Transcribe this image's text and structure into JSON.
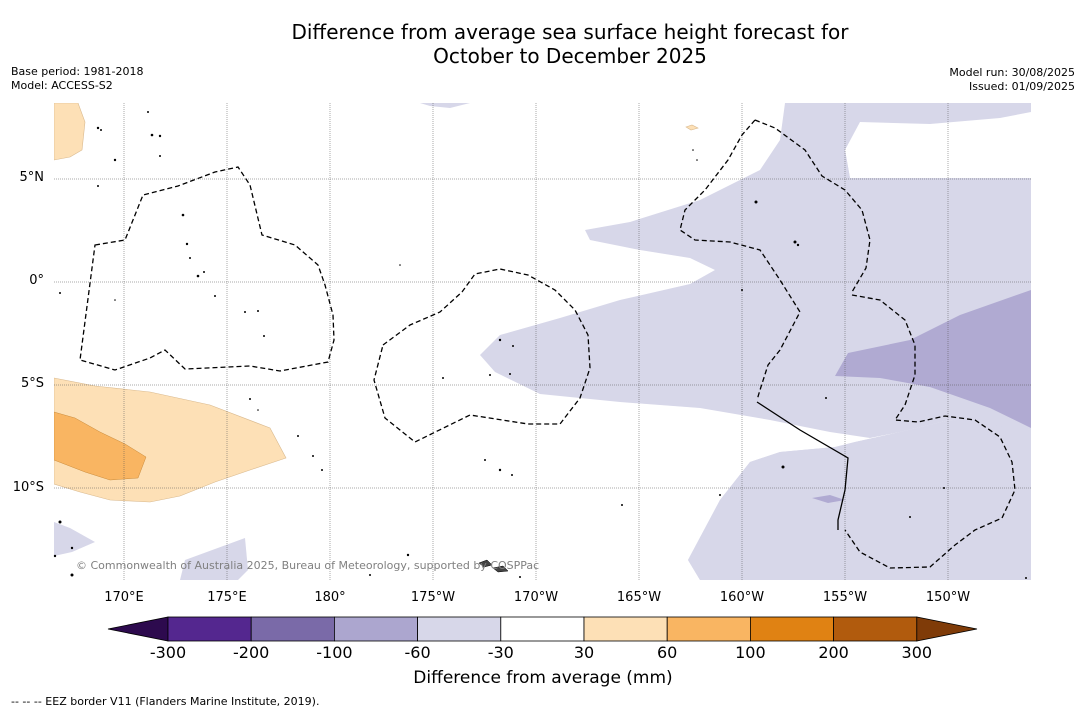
{
  "title_line1": "Difference from average sea surface height forecast for",
  "title_line2": "October to December 2025",
  "base_period": "Base period: 1981-2018",
  "model": "Model: ACCESS-S2",
  "model_run": "Model run: 30/08/2025",
  "issued": "Issued: 01/09/2025",
  "lat_labels": [
    "5°N",
    "0°",
    "5°S",
    "10°S"
  ],
  "lon_labels": [
    "170°E",
    "175°E",
    "180°",
    "175°W",
    "170°W",
    "165°W",
    "160°W",
    "155°W",
    "150°W"
  ],
  "colorbar": {
    "labels": [
      "-300",
      "-200",
      "-100",
      "-60",
      "-30",
      "30",
      "60",
      "100",
      "200",
      "300"
    ],
    "colors": [
      "#2d0a4e",
      "#54278f",
      "#7a6aa8",
      "#aca6cf",
      "#d7d7e9",
      "#ffffff",
      "#fde0b6",
      "#f9b562",
      "#e08213",
      "#b15b0d",
      "#7f3b08"
    ],
    "title": "Difference from average (mm)"
  },
  "copyright": "© Commonwealth of Australia 2025, Bureau of Meteorology, supported by COSPPac",
  "eez_legend": "-- -- -- EEZ border V11 (Flanders Marine Institute, 2019)."
}
